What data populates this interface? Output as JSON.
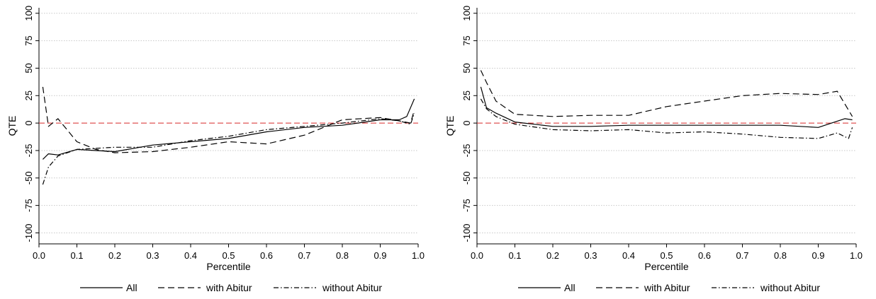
{
  "chart_data": [
    {
      "type": "line",
      "xlabel": "Percentile",
      "ylabel": "QTE",
      "xlim": [
        0,
        1
      ],
      "ylim": [
        -110,
        105
      ],
      "x_ticks": [
        "0.0",
        "0.1",
        "0.2",
        "0.3",
        "0.4",
        "0.5",
        "0.6",
        "0.7",
        "0.8",
        "0.9",
        "1.0"
      ],
      "y_ticks": [
        "-100",
        "-75",
        "-50",
        "-25",
        "0",
        "25",
        "50",
        "75",
        "100"
      ],
      "grid": "horizontal dotted",
      "reference_line": {
        "y": 0,
        "color": "#d62728",
        "style": "dashed"
      },
      "legend_position": "bottom",
      "series": [
        {
          "name": "All",
          "style": "solid",
          "x": [
            0.01,
            0.025,
            0.05,
            0.1,
            0.2,
            0.3,
            0.4,
            0.5,
            0.6,
            0.7,
            0.8,
            0.9,
            0.95,
            0.97,
            0.99
          ],
          "y": [
            -33,
            -28,
            -29,
            -24,
            -26,
            -20,
            -17,
            -14,
            -8,
            -4,
            -2,
            3,
            3,
            6,
            22
          ]
        },
        {
          "name": "with Abitur",
          "style": "dashed",
          "x": [
            0.01,
            0.025,
            0.05,
            0.1,
            0.15,
            0.2,
            0.3,
            0.4,
            0.5,
            0.6,
            0.7,
            0.8,
            0.9,
            0.95,
            0.98,
            0.99
          ],
          "y": [
            33,
            -3,
            4,
            -17,
            -24,
            -27,
            -26,
            -22,
            -17,
            -19,
            -11,
            3,
            5,
            2,
            0,
            12
          ]
        },
        {
          "name": "without Abitur",
          "style": "dash-dot",
          "x": [
            0.01,
            0.025,
            0.05,
            0.1,
            0.2,
            0.3,
            0.4,
            0.5,
            0.6,
            0.7,
            0.8,
            0.9,
            0.95,
            0.98,
            0.99
          ],
          "y": [
            -56,
            -40,
            -30,
            -24,
            -22,
            -22,
            -16,
            -12,
            -6,
            -3,
            0,
            4,
            2,
            -1,
            9
          ]
        }
      ]
    },
    {
      "type": "line",
      "xlabel": "Percentile",
      "ylabel": "QTE",
      "xlim": [
        0,
        1
      ],
      "ylim": [
        -110,
        105
      ],
      "x_ticks": [
        "0.0",
        "0.1",
        "0.2",
        "0.3",
        "0.4",
        "0.5",
        "0.6",
        "0.7",
        "0.8",
        "0.9",
        "1.0"
      ],
      "y_ticks": [
        "-100",
        "-75",
        "-50",
        "-25",
        "0",
        "25",
        "50",
        "75",
        "100"
      ],
      "grid": "horizontal dotted",
      "reference_line": {
        "y": 0,
        "color": "#d62728",
        "style": "dashed"
      },
      "legend_position": "bottom",
      "series": [
        {
          "name": "All",
          "style": "solid",
          "x": [
            0.01,
            0.025,
            0.05,
            0.1,
            0.2,
            0.3,
            0.4,
            0.5,
            0.6,
            0.7,
            0.8,
            0.9,
            0.97,
            0.99
          ],
          "y": [
            33,
            14,
            9,
            1,
            -3,
            -3,
            -2,
            -2,
            -2,
            -2,
            -2,
            -4,
            4,
            3
          ]
        },
        {
          "name": "with Abitur",
          "style": "dashed",
          "x": [
            0.01,
            0.025,
            0.05,
            0.1,
            0.2,
            0.3,
            0.4,
            0.5,
            0.6,
            0.7,
            0.8,
            0.9,
            0.95,
            0.99
          ],
          "y": [
            48,
            37,
            20,
            8,
            6,
            7,
            7,
            15,
            20,
            25,
            27,
            26,
            29,
            6
          ]
        },
        {
          "name": "without Abitur",
          "style": "dash-dot",
          "x": [
            0.01,
            0.025,
            0.05,
            0.1,
            0.2,
            0.3,
            0.4,
            0.5,
            0.6,
            0.7,
            0.8,
            0.9,
            0.95,
            0.98,
            0.99
          ],
          "y": [
            22,
            13,
            6,
            -1,
            -6,
            -7,
            -6,
            -9,
            -8,
            -10,
            -13,
            -14,
            -9,
            -14,
            -4
          ]
        }
      ]
    }
  ]
}
